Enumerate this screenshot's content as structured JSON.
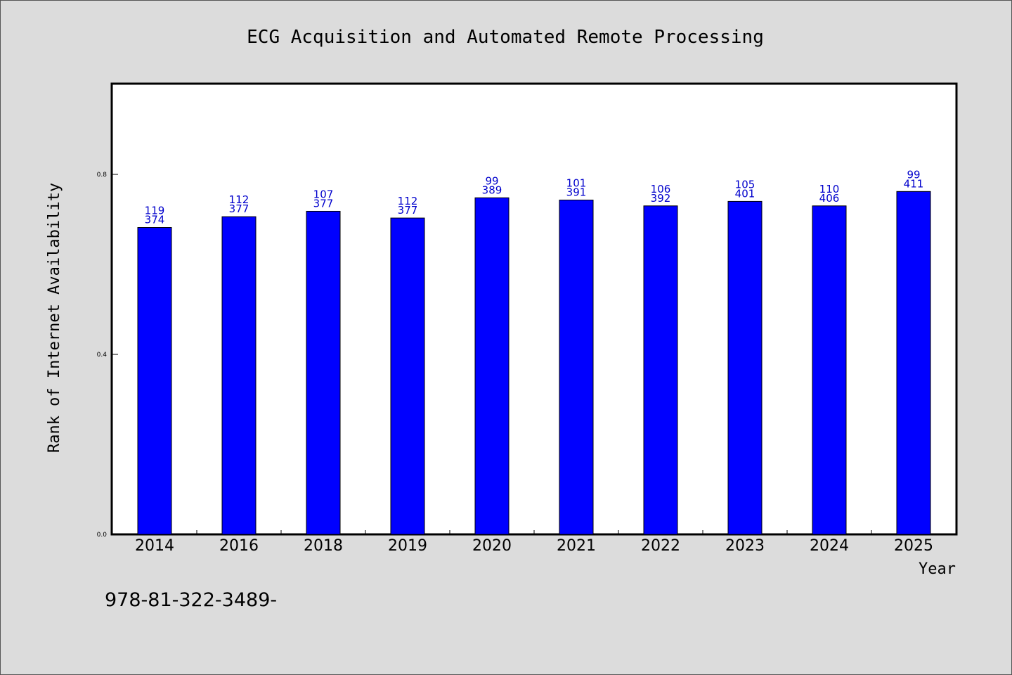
{
  "chart_data": {
    "type": "bar",
    "title": "ECG Acquisition and Automated Remote Processing",
    "xlabel": "Year",
    "ylabel": "Rank of Internet Availability",
    "categories": [
      "2014",
      "2016",
      "2018",
      "2019",
      "2020",
      "2021",
      "2022",
      "2023",
      "2024",
      "2025"
    ],
    "series": [
      {
        "values": [
          0.682,
          0.706,
          0.718,
          0.703,
          0.748,
          0.743,
          0.73,
          0.74,
          0.73,
          0.762
        ]
      }
    ],
    "bar_labels": [
      [
        "119",
        "374"
      ],
      [
        "112",
        "377"
      ],
      [
        "107",
        "377"
      ],
      [
        "112",
        "377"
      ],
      [
        "99",
        "389"
      ],
      [
        "101",
        "391"
      ],
      [
        "106",
        "392"
      ],
      [
        "105",
        "401"
      ],
      [
        "110",
        "406"
      ],
      [
        "99",
        "411"
      ]
    ],
    "yticks": [
      "0.0",
      "0.4",
      "0.8"
    ],
    "ylim": [
      0,
      1.0
    ],
    "grid": false,
    "bar_color": "#0000ff",
    "label_color": "#0000cc"
  },
  "footnote": "978-81-322-3489-"
}
